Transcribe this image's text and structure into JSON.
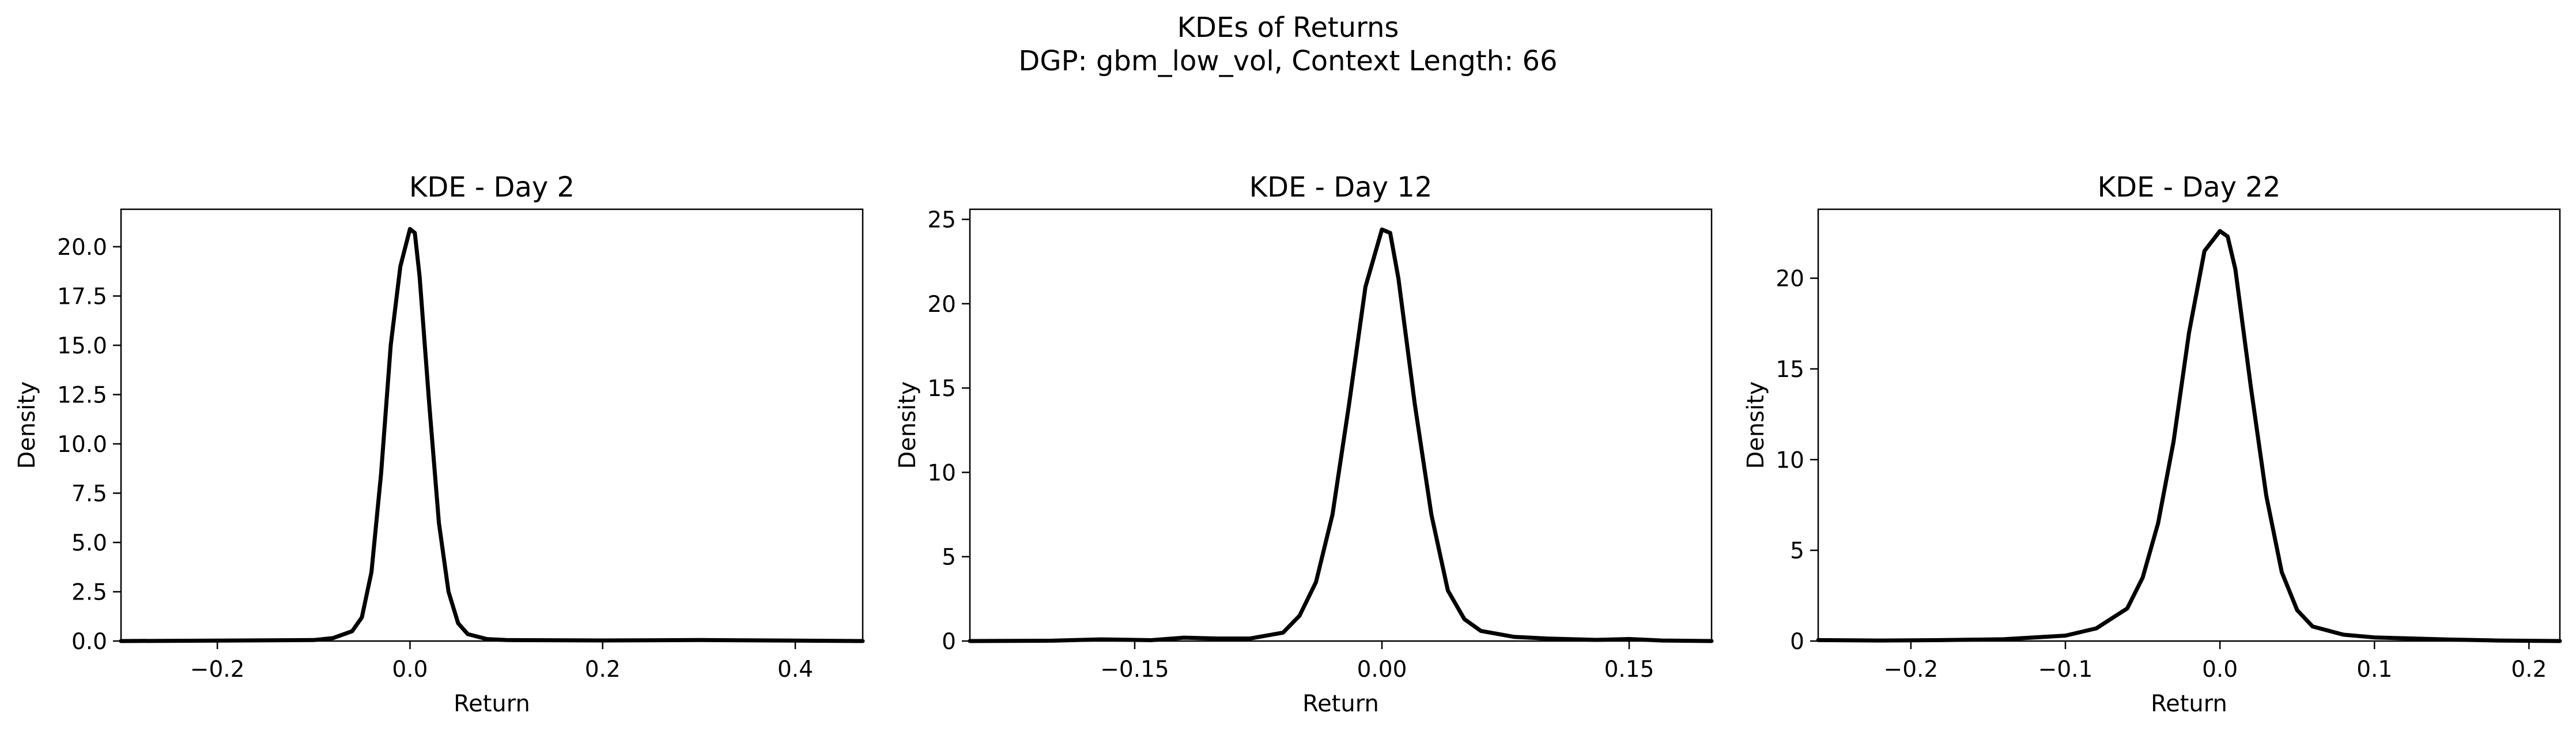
{
  "figure": {
    "title_line1": "KDEs of Returns",
    "title_line2": "DGP: gbm_low_vol, Context Length: 66"
  },
  "chart_data": [
    {
      "type": "line",
      "title": "KDE - Day 2",
      "xlabel": "Return",
      "ylabel": "Density",
      "xlim": [
        -0.3,
        0.47
      ],
      "ylim": [
        0,
        21.9
      ],
      "xticks": [
        -0.2,
        0.0,
        0.2,
        0.4
      ],
      "xtick_labels": [
        "−0.2",
        "0.0",
        "0.2",
        "0.4"
      ],
      "yticks": [
        0,
        2.5,
        5,
        7.5,
        10,
        12.5,
        15,
        17.5,
        20
      ],
      "ytick_labels": [
        "0.0",
        "2.5",
        "5.0",
        "7.5",
        "10.0",
        "12.5",
        "15.0",
        "17.5",
        "20.0"
      ],
      "grid": false,
      "series": [
        {
          "color": "#000000",
          "x": [
            -0.3,
            -0.2,
            -0.1,
            -0.08,
            -0.06,
            -0.05,
            -0.04,
            -0.03,
            -0.02,
            -0.01,
            0.0,
            0.005,
            0.01,
            0.02,
            0.03,
            0.04,
            0.05,
            0.06,
            0.08,
            0.1,
            0.2,
            0.3,
            0.4,
            0.47
          ],
          "y": [
            0,
            0.02,
            0.05,
            0.15,
            0.5,
            1.2,
            3.5,
            8.5,
            15.0,
            19.0,
            20.9,
            20.7,
            18.5,
            12.0,
            6.0,
            2.5,
            0.9,
            0.35,
            0.1,
            0.05,
            0.03,
            0.05,
            0.02,
            0
          ]
        }
      ]
    },
    {
      "type": "line",
      "title": "KDE - Day 12",
      "xlabel": "Return",
      "ylabel": "Density",
      "xlim": [
        -0.25,
        0.2
      ],
      "ylim": [
        0,
        25.6
      ],
      "xticks": [
        -0.15,
        0.0,
        0.15
      ],
      "xtick_labels": [
        "−0.15",
        "0.00",
        "0.15"
      ],
      "yticks": [
        0,
        5,
        10,
        15,
        20,
        25
      ],
      "ytick_labels": [
        "0",
        "5",
        "10",
        "15",
        "20",
        "25"
      ],
      "grid": false,
      "series": [
        {
          "color": "#000000",
          "x": [
            -0.25,
            -0.2,
            -0.17,
            -0.14,
            -0.12,
            -0.1,
            -0.08,
            -0.06,
            -0.05,
            -0.04,
            -0.03,
            -0.02,
            -0.01,
            0.0,
            0.005,
            0.01,
            0.02,
            0.03,
            0.04,
            0.05,
            0.06,
            0.08,
            0.1,
            0.13,
            0.15,
            0.17,
            0.2
          ],
          "y": [
            0,
            0.02,
            0.1,
            0.05,
            0.2,
            0.15,
            0.15,
            0.5,
            1.5,
            3.5,
            7.5,
            14.0,
            21.0,
            24.4,
            24.2,
            21.5,
            14.0,
            7.5,
            3.0,
            1.3,
            0.6,
            0.25,
            0.15,
            0.07,
            0.12,
            0.03,
            0
          ]
        }
      ]
    },
    {
      "type": "line",
      "title": "KDE - Day 22",
      "xlabel": "Return",
      "ylabel": "Density",
      "xlim": [
        -0.26,
        0.22
      ],
      "ylim": [
        0,
        23.8
      ],
      "xticks": [
        -0.2,
        -0.1,
        0.0,
        0.1,
        0.2
      ],
      "xtick_labels": [
        "−0.2",
        "−0.1",
        "0.0",
        "0.1",
        "0.2"
      ],
      "yticks": [
        0,
        5,
        10,
        15,
        20
      ],
      "ytick_labels": [
        "0",
        "5",
        "10",
        "15",
        "20"
      ],
      "grid": false,
      "series": [
        {
          "color": "#000000",
          "x": [
            -0.26,
            -0.22,
            -0.18,
            -0.14,
            -0.1,
            -0.08,
            -0.06,
            -0.05,
            -0.04,
            -0.03,
            -0.02,
            -0.01,
            0.0,
            0.005,
            0.01,
            0.02,
            0.03,
            0.04,
            0.05,
            0.06,
            0.08,
            0.1,
            0.12,
            0.15,
            0.18,
            0.22
          ],
          "y": [
            0.05,
            0.03,
            0.05,
            0.1,
            0.3,
            0.7,
            1.8,
            3.5,
            6.5,
            11.0,
            17.0,
            21.5,
            22.6,
            22.3,
            20.5,
            14.0,
            8.0,
            3.8,
            1.7,
            0.8,
            0.35,
            0.2,
            0.15,
            0.08,
            0.03,
            0
          ]
        }
      ]
    }
  ]
}
